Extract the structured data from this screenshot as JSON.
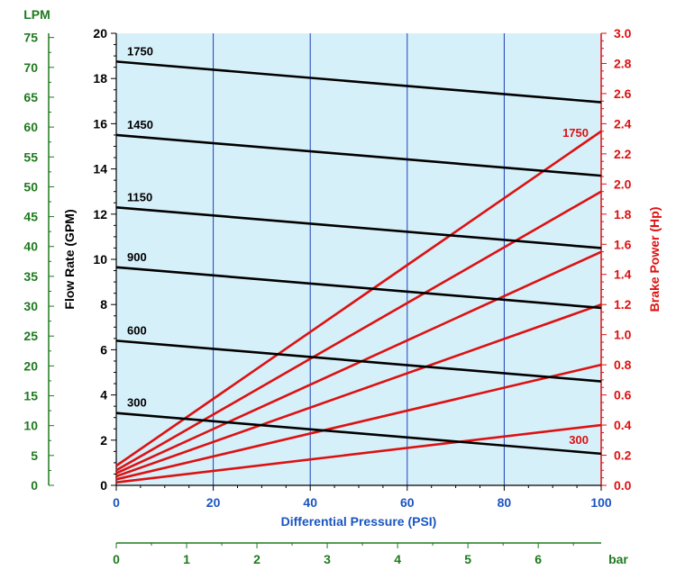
{
  "chart_data": {
    "type": "line",
    "x": [
      0,
      100
    ],
    "xlabel": "Differential Pressure (PSI)",
    "xlim": [
      0,
      100
    ],
    "xticks": [
      "0",
      "20",
      "40",
      "60",
      "80",
      "100"
    ],
    "ylabel": "Flow Rate (GPM)",
    "ylim": [
      0,
      20
    ],
    "yticks": [
      "0",
      "2",
      "4",
      "6",
      "8",
      "10",
      "12",
      "14",
      "16",
      "18",
      "20"
    ],
    "y2label": "Brake Power (Hp)",
    "y2lim": [
      0,
      3.0
    ],
    "y2ticks": [
      "0.0",
      "0.2",
      "0.4",
      "0.6",
      "0.8",
      "1.0",
      "1.2",
      "1.4",
      "1.6",
      "1.8",
      "2.0",
      "2.2",
      "2.4",
      "2.6",
      "2.8",
      "3.0"
    ],
    "lpm_title": "LPM",
    "lpm_lim": [
      0,
      75.7
    ],
    "lpm_ticks": [
      "0",
      "5",
      "10",
      "15",
      "20",
      "25",
      "30",
      "35",
      "40",
      "45",
      "50",
      "55",
      "60",
      "65",
      "70",
      "75"
    ],
    "bar_title": "bar",
    "bar_lim": [
      0,
      6.895
    ],
    "bar_ticks": [
      "0",
      "1",
      "2",
      "3",
      "4",
      "5",
      "6"
    ],
    "grid": true,
    "flow_series": [
      {
        "name": "1750",
        "values": [
          18.75,
          16.95
        ]
      },
      {
        "name": "1450",
        "values": [
          15.5,
          13.7
        ]
      },
      {
        "name": "1150",
        "values": [
          12.3,
          10.5
        ]
      },
      {
        "name": "900",
        "values": [
          9.65,
          7.85
        ]
      },
      {
        "name": "600",
        "values": [
          6.4,
          4.6
        ]
      },
      {
        "name": "300",
        "values": [
          3.2,
          1.4
        ]
      }
    ],
    "power_series": [
      {
        "name": "1750",
        "values": [
          0.13,
          2.35
        ]
      },
      {
        "name": "",
        "values": [
          0.1,
          1.95
        ]
      },
      {
        "name": "",
        "values": [
          0.08,
          1.55
        ]
      },
      {
        "name": "",
        "values": [
          0.06,
          1.2
        ]
      },
      {
        "name": "",
        "values": [
          0.04,
          0.8
        ]
      },
      {
        "name": "300",
        "values": [
          0.02,
          0.4
        ]
      }
    ],
    "colors": {
      "plot_bg": "#d6f0fa",
      "grid": "#1a3fb5",
      "flow": "#000000",
      "power": "#dd1111",
      "lpm": "#1e7a1e",
      "xlabel": "#1a55c0"
    }
  }
}
